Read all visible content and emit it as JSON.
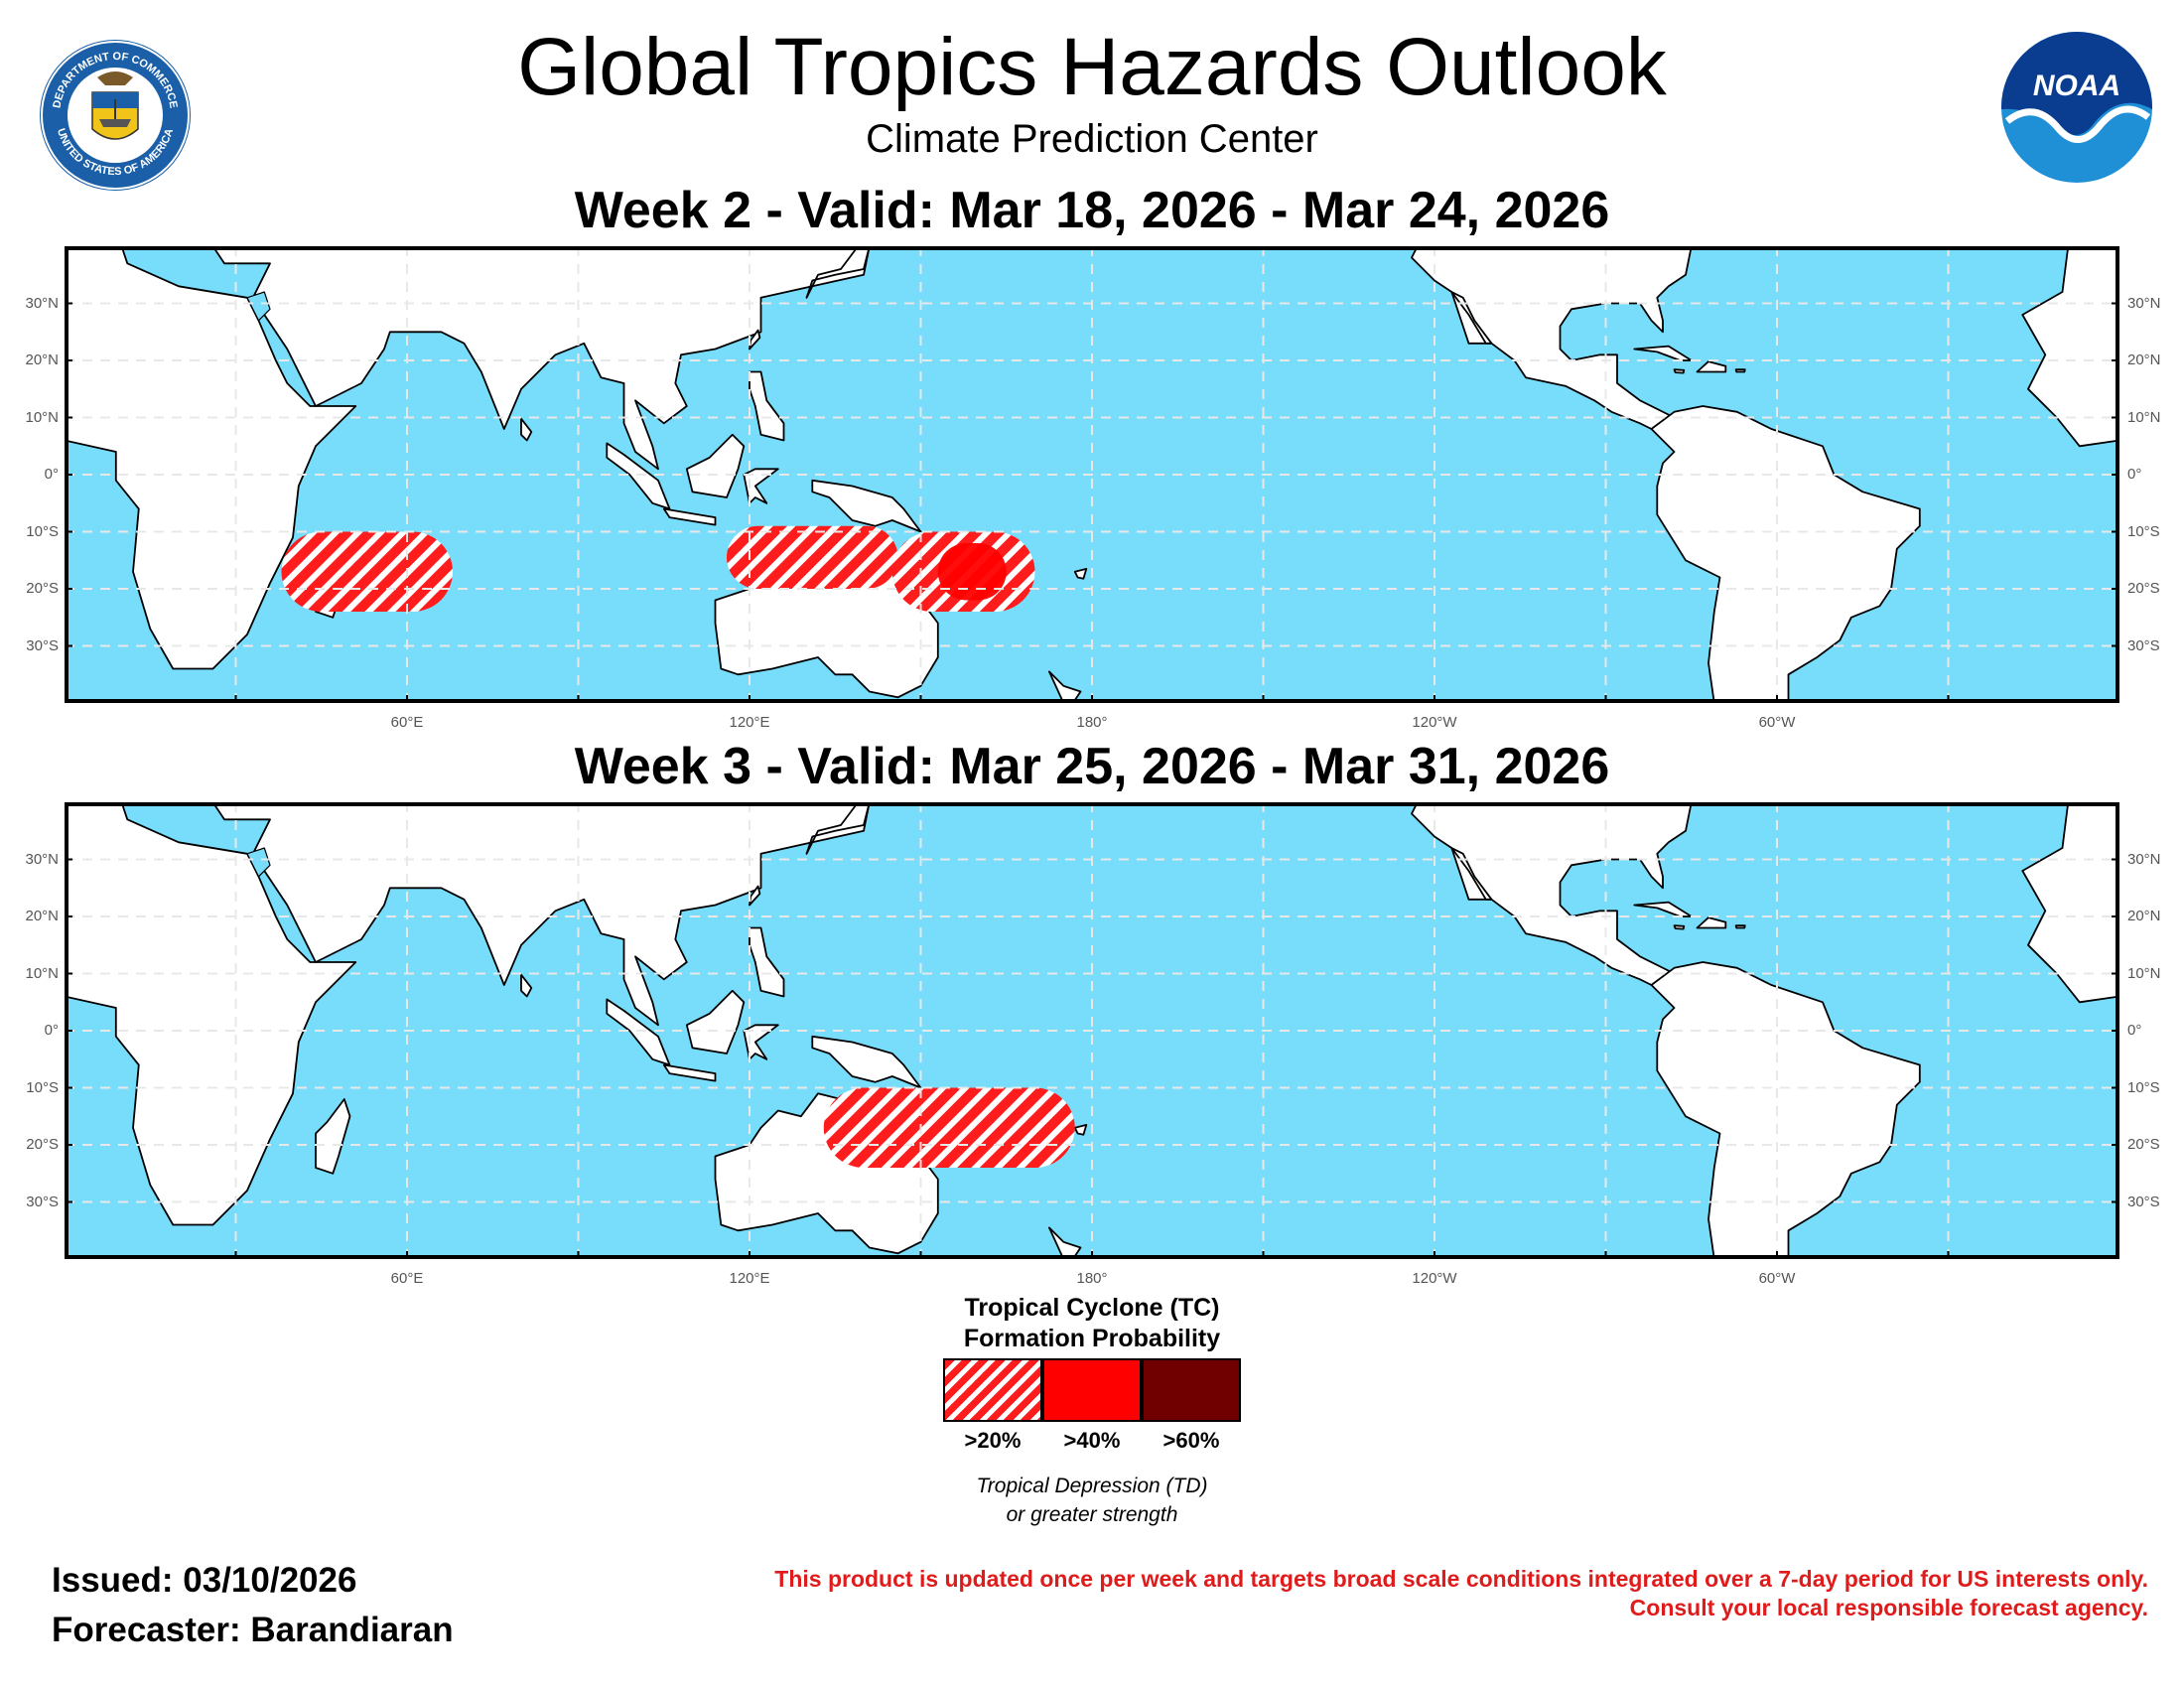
{
  "header": {
    "title": "Global Tropics Hazards Outlook",
    "subtitle": "Climate Prediction Center",
    "left_logo_text_top": "DEPARTMENT OF COMMERCE",
    "left_logo_text_bottom": "UNITED STATES OF AMERICA",
    "right_logo_text": "NOAA"
  },
  "colors": {
    "ocean": "#77ddfb",
    "land": "#ffffff",
    "hazard_20": "#ff1c1c",
    "hazard_40": "#ff0000",
    "hazard_60": "#700000",
    "disclaimer": "#e01b1b"
  },
  "map_axes": {
    "lat_labels": [
      "30°N",
      "20°N",
      "10°N",
      "0°",
      "10°S",
      "20°S",
      "30°S"
    ],
    "lon_labels": [
      "60°E",
      "120°E",
      "180°",
      "120°W",
      "60°W"
    ]
  },
  "panels": [
    {
      "title": "Week 2 - Valid: Mar 18, 2026 - Mar 24, 2026",
      "hazards": [
        {
          "region": "Southwest Indian Ocean / Madagascar",
          "category": ">20%",
          "lon_range": [
            38,
            68
          ],
          "lat_range": [
            -24,
            -10
          ]
        },
        {
          "region": "Northern Australia / Arafura Sea",
          "category": ">20%",
          "lon_range": [
            116,
            146
          ],
          "lat_range": [
            -20,
            -9
          ]
        },
        {
          "region": "Coral Sea",
          "category": ">20%",
          "lon_range": [
            145,
            170
          ],
          "lat_range": [
            -24,
            -10
          ]
        },
        {
          "region": "Coral Sea",
          "category": ">40%",
          "lon_range": [
            153,
            165
          ],
          "lat_range": [
            -22,
            -12
          ]
        }
      ]
    },
    {
      "title": "Week 3 - Valid: Mar 25, 2026 - Mar 31, 2026",
      "hazards": [
        {
          "region": "Gulf of Carpentaria / Coral Sea",
          "category": ">20%",
          "lon_range": [
            133,
            177
          ],
          "lat_range": [
            -24,
            -10
          ]
        }
      ]
    }
  ],
  "legend": {
    "title_line1": "Tropical Cyclone (TC)",
    "title_line2": "Formation Probability",
    "items": [
      ">20%",
      ">40%",
      ">60%"
    ],
    "note_line1": "Tropical Depression (TD)",
    "note_line2": "or greater strength"
  },
  "footer": {
    "issued": "Issued: 03/10/2026",
    "forecaster": "Forecaster: Barandiaran",
    "disclaimer_line1": "This product is updated once per week and targets broad scale conditions integrated over a 7-day period for US interests only.",
    "disclaimer_line2": "Consult your local responsible forecast agency."
  }
}
